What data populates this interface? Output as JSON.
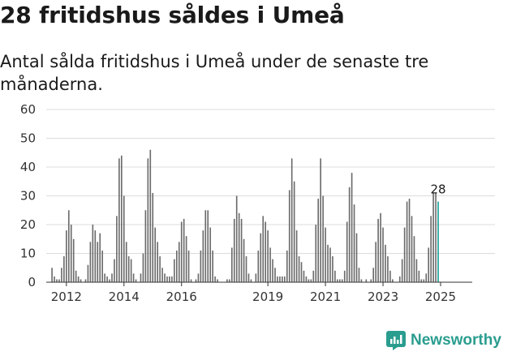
{
  "header": {
    "title": "28 fritidshus såldes i Umeå",
    "subtitle": "Antal sålda fritidshus i Umeå under de senaste tre månaderna."
  },
  "brand": {
    "name": "Newsworthy",
    "icon": "newsworthy-logo-icon",
    "color": "#2a9d8f"
  },
  "colors": {
    "bar": "#6b6b6b",
    "highlight": "#1a9e96",
    "grid": "#dcdcdc"
  },
  "chart_data": {
    "type": "bar",
    "title": "28 fritidshus såldes i Umeå",
    "subtitle": "Antal sålda fritidshus i Umeå under de senaste tre månaderna.",
    "xlabel": "",
    "ylabel": "",
    "ylim": [
      0,
      60
    ],
    "yticks": [
      0,
      10,
      20,
      30,
      40,
      50,
      60
    ],
    "xlim": [
      2011.3,
      2026.1
    ],
    "xticks": [
      {
        "value": 2012,
        "label": "2012"
      },
      {
        "value": 2014,
        "label": "2014"
      },
      {
        "value": 2016,
        "label": "2016"
      },
      {
        "value": 2019,
        "label": "2019"
      },
      {
        "value": 2021,
        "label": "2021"
      },
      {
        "value": 2023,
        "label": "2023"
      },
      {
        "value": 2025,
        "label": "2025"
      }
    ],
    "grid": true,
    "series": [
      {
        "name": "Antal sålda fritidshus",
        "start": 2011.5,
        "step": 0.08333,
        "values": [
          5,
          2,
          1,
          1,
          5,
          9,
          18,
          25,
          20,
          15,
          4,
          2,
          1,
          0,
          1,
          6,
          14,
          20,
          18,
          14,
          17,
          11,
          3,
          2,
          1,
          3,
          8,
          23,
          43,
          44,
          30,
          14,
          9,
          8,
          3,
          1,
          0,
          3,
          10,
          25,
          43,
          46,
          31,
          19,
          14,
          9,
          5,
          3,
          2,
          2,
          2,
          8,
          11,
          14,
          21,
          22,
          16,
          11,
          1,
          0,
          1,
          3,
          11,
          18,
          25,
          25,
          19,
          11,
          2,
          1,
          0,
          0,
          0,
          1,
          1,
          12,
          22,
          30,
          24,
          22,
          15,
          9,
          3,
          1,
          0,
          3,
          11,
          17,
          23,
          21,
          18,
          12,
          8,
          5,
          2,
          2,
          2,
          2,
          11,
          32,
          43,
          35,
          18,
          9,
          7,
          4,
          2,
          1,
          1,
          4,
          20,
          29,
          43,
          30,
          19,
          13,
          12,
          9,
          4,
          1,
          1,
          1,
          4,
          21,
          33,
          38,
          27,
          17,
          5,
          1,
          0,
          1,
          0,
          1,
          5,
          14,
          22,
          24,
          19,
          13,
          9,
          4,
          1,
          0,
          0,
          2,
          8,
          19,
          28,
          29,
          23,
          16,
          8,
          4,
          1,
          1,
          3,
          12,
          23,
          31,
          31,
          28
        ]
      }
    ],
    "highlight_index": 161,
    "annotations": [
      {
        "text": "28",
        "target": "last-bar"
      }
    ]
  }
}
